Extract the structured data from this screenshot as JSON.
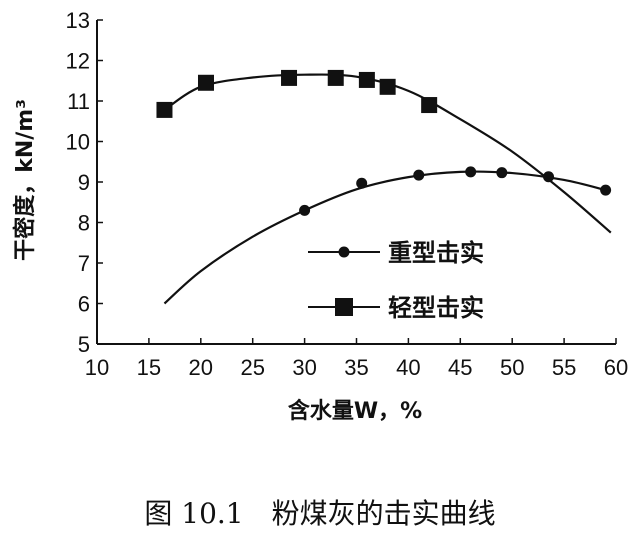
{
  "caption": "图 10.1　粉煤灰的击实曲线",
  "chart_data": {
    "type": "line",
    "xlabel": "含水量W，%",
    "ylabel": "干密度，kN/m³",
    "xlim": [
      10,
      60
    ],
    "ylim": [
      5,
      13
    ],
    "xticks": [
      10,
      15,
      20,
      25,
      30,
      35,
      40,
      45,
      50,
      55,
      60
    ],
    "yticks": [
      5,
      6,
      7,
      8,
      9,
      10,
      11,
      12,
      13
    ],
    "legend_position": "center-right",
    "series": [
      {
        "name": "重型击实",
        "marker": "circle",
        "points": [
          [
            30,
            8.3
          ],
          [
            35.5,
            8.97
          ],
          [
            41,
            9.17
          ],
          [
            46,
            9.25
          ],
          [
            49,
            9.23
          ],
          [
            53.5,
            9.13
          ],
          [
            59,
            8.8
          ]
        ],
        "curve": [
          [
            16.5,
            6.0
          ],
          [
            20,
            6.8
          ],
          [
            25,
            7.65
          ],
          [
            30,
            8.3
          ],
          [
            35,
            8.82
          ],
          [
            40,
            9.12
          ],
          [
            45,
            9.25
          ],
          [
            50,
            9.22
          ],
          [
            55,
            9.05
          ],
          [
            59,
            8.8
          ]
        ]
      },
      {
        "name": "轻型击实",
        "marker": "square",
        "points": [
          [
            16.5,
            10.78
          ],
          [
            20.5,
            11.45
          ],
          [
            28.5,
            11.57
          ],
          [
            33,
            11.57
          ],
          [
            36,
            11.52
          ],
          [
            38,
            11.35
          ],
          [
            42,
            10.9
          ]
        ],
        "curve": [
          [
            16.5,
            10.78
          ],
          [
            20,
            11.35
          ],
          [
            25,
            11.58
          ],
          [
            30,
            11.65
          ],
          [
            35,
            11.6
          ],
          [
            40,
            11.25
          ],
          [
            45,
            10.55
          ],
          [
            50,
            9.75
          ],
          [
            55,
            8.75
          ],
          [
            59.5,
            7.75
          ]
        ]
      }
    ]
  }
}
